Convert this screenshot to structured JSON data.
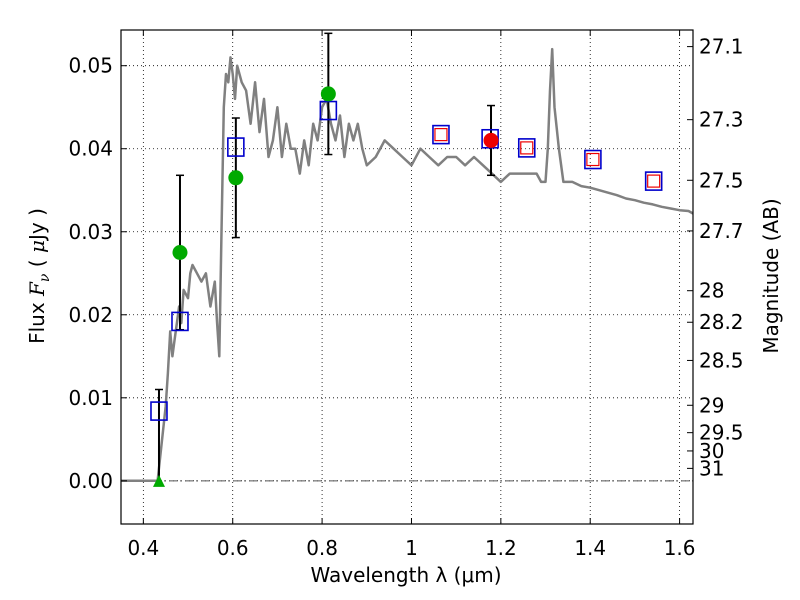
{
  "chart_data": {
    "type": "scatter",
    "xlabel": "Wavelength  λ (μm)",
    "ylabel": "Flux  F_ν  ( μJy )",
    "y2label": "Magnitude (AB)",
    "xlim": [
      0.35,
      1.63
    ],
    "ylim": [
      -0.0052,
      0.0543
    ],
    "grid": true,
    "x_ticks": [
      0.4,
      0.6,
      0.8,
      1.0,
      1.2,
      1.4,
      1.6
    ],
    "x_tick_labels": [
      "0.4",
      "0.6",
      "0.8",
      "1",
      "1.2",
      "1.4",
      "1.6"
    ],
    "y_ticks": [
      0.0,
      0.01,
      0.02,
      0.03,
      0.04,
      0.05
    ],
    "y_tick_labels": [
      "0.00",
      "0.01",
      "0.02",
      "0.03",
      "0.04",
      "0.05"
    ],
    "mag_ticks": [
      {
        "label": "27.1",
        "flux": 0.0523
      },
      {
        "label": "27.3",
        "flux": 0.0435
      },
      {
        "label": "27.5",
        "flux": 0.0362
      },
      {
        "label": "27.7",
        "flux": 0.0301
      },
      {
        "label": "28",
        "flux": 0.0229
      },
      {
        "label": "28.2",
        "flux": 0.0191
      },
      {
        "label": "28.5",
        "flux": 0.0145
      },
      {
        "label": "29",
        "flux": 0.0091
      },
      {
        "label": "29.5",
        "flux": 0.0058
      },
      {
        "label": "30",
        "flux": 0.0036
      },
      {
        "label": "31",
        "flux": 0.0015
      }
    ],
    "model_spectrum": {
      "color": "#808080",
      "x": [
        0.35,
        0.42,
        0.432,
        0.44,
        0.45,
        0.455,
        0.46,
        0.465,
        0.47,
        0.475,
        0.48,
        0.485,
        0.49,
        0.5,
        0.505,
        0.51,
        0.52,
        0.53,
        0.54,
        0.55,
        0.56,
        0.565,
        0.57,
        0.575,
        0.58,
        0.585,
        0.59,
        0.595,
        0.6,
        0.605,
        0.61,
        0.62,
        0.63,
        0.64,
        0.65,
        0.66,
        0.67,
        0.68,
        0.69,
        0.7,
        0.71,
        0.72,
        0.73,
        0.74,
        0.75,
        0.76,
        0.77,
        0.78,
        0.79,
        0.8,
        0.81,
        0.82,
        0.83,
        0.84,
        0.85,
        0.86,
        0.87,
        0.88,
        0.89,
        0.9,
        0.92,
        0.94,
        0.96,
        0.98,
        1.0,
        1.02,
        1.04,
        1.06,
        1.08,
        1.1,
        1.12,
        1.14,
        1.16,
        1.18,
        1.2,
        1.22,
        1.24,
        1.26,
        1.28,
        1.29,
        1.3,
        1.305,
        1.31,
        1.315,
        1.32,
        1.33,
        1.34,
        1.36,
        1.38,
        1.4,
        1.42,
        1.44,
        1.46,
        1.48,
        1.5,
        1.52,
        1.54,
        1.56,
        1.58,
        1.6,
        1.62,
        1.63
      ],
      "y": [
        0.0,
        0.0,
        0.0,
        0.004,
        0.009,
        0.013,
        0.018,
        0.015,
        0.017,
        0.019,
        0.021,
        0.019,
        0.023,
        0.022,
        0.025,
        0.026,
        0.025,
        0.024,
        0.025,
        0.021,
        0.024,
        0.019,
        0.015,
        0.03,
        0.045,
        0.049,
        0.048,
        0.051,
        0.049,
        0.046,
        0.05,
        0.048,
        0.047,
        0.043,
        0.048,
        0.042,
        0.046,
        0.039,
        0.041,
        0.045,
        0.039,
        0.043,
        0.04,
        0.04,
        0.037,
        0.041,
        0.038,
        0.043,
        0.041,
        0.045,
        0.046,
        0.043,
        0.041,
        0.044,
        0.039,
        0.043,
        0.041,
        0.043,
        0.04,
        0.038,
        0.039,
        0.041,
        0.04,
        0.039,
        0.038,
        0.04,
        0.039,
        0.038,
        0.039,
        0.039,
        0.038,
        0.039,
        0.038,
        0.037,
        0.036,
        0.037,
        0.037,
        0.037,
        0.037,
        0.036,
        0.036,
        0.04,
        0.047,
        0.052,
        0.045,
        0.04,
        0.036,
        0.036,
        0.0355,
        0.0353,
        0.035,
        0.0347,
        0.0344,
        0.034,
        0.0338,
        0.0335,
        0.0333,
        0.033,
        0.0328,
        0.0326,
        0.0325,
        0.0322
      ]
    },
    "observed_detections": {
      "color": "#00aa00",
      "points": [
        {
          "x": 0.482,
          "y": 0.0275,
          "err": 0.0093
        },
        {
          "x": 0.607,
          "y": 0.0365,
          "err": 0.0072
        },
        {
          "x": 0.814,
          "y": 0.0466,
          "err": 0.0073
        },
        {
          "x": 1.178,
          "y": 0.041,
          "err": 0.0042,
          "color": "#ee0000"
        }
      ]
    },
    "observed_limit": {
      "color": "#00aa00",
      "x": 0.435,
      "y": 0.0,
      "err": 0.011
    },
    "model_photometry": {
      "color": "#0000cc",
      "points": [
        {
          "x": 0.435,
          "y": 0.0084
        },
        {
          "x": 0.482,
          "y": 0.0192
        },
        {
          "x": 0.607,
          "y": 0.0402
        },
        {
          "x": 0.814,
          "y": 0.0446
        },
        {
          "x": 1.066,
          "y": 0.0417
        },
        {
          "x": 1.176,
          "y": 0.0412
        },
        {
          "x": 1.258,
          "y": 0.0401
        },
        {
          "x": 1.406,
          "y": 0.0387
        },
        {
          "x": 1.542,
          "y": 0.0361
        }
      ]
    },
    "inner_markers": {
      "color": "#ee0000",
      "points": [
        {
          "x": 1.066,
          "y": 0.0417
        },
        {
          "x": 1.258,
          "y": 0.0401
        },
        {
          "x": 1.406,
          "y": 0.0387
        },
        {
          "x": 1.542,
          "y": 0.0361
        }
      ]
    }
  }
}
